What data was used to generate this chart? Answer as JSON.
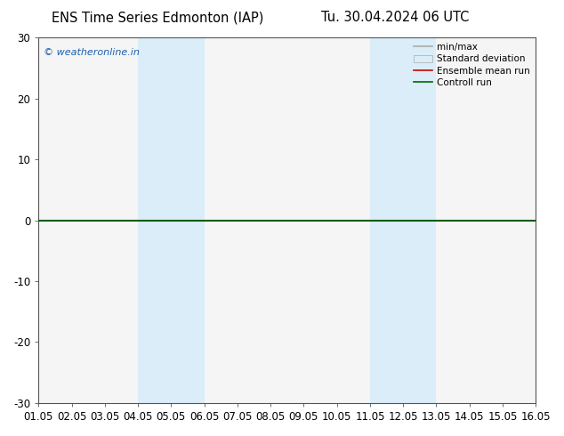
{
  "title_left": "ENS Time Series Edmonton (IAP)",
  "title_right": "Tu. 30.04.2024 06 UTC",
  "ylim": [
    -30,
    30
  ],
  "yticks": [
    -30,
    -20,
    -10,
    0,
    10,
    20,
    30
  ],
  "xtick_labels": [
    "01.05",
    "02.05",
    "03.05",
    "04.05",
    "05.05",
    "06.05",
    "07.05",
    "08.05",
    "09.05",
    "10.05",
    "11.05",
    "12.05",
    "13.05",
    "14.05",
    "15.05",
    "16.05"
  ],
  "shaded_bands": [
    {
      "xstart": 3,
      "xend": 4,
      "color": "#daedf8"
    },
    {
      "xstart": 4,
      "xend": 5,
      "color": "#daedf8"
    },
    {
      "xstart": 10,
      "xend": 11,
      "color": "#daedf8"
    },
    {
      "xstart": 11,
      "xend": 12,
      "color": "#daedf8"
    }
  ],
  "watermark": "© weatheronline.in",
  "watermark_color": "#1a5fb0",
  "legend_items": [
    {
      "label": "min/max",
      "type": "line",
      "color": "#aaaaaa",
      "lw": 1.2,
      "ls": "-"
    },
    {
      "label": "Standard deviation",
      "type": "patch",
      "facecolor": "#daedf8",
      "edgecolor": "#aaaaaa"
    },
    {
      "label": "Ensemble mean run",
      "type": "line",
      "color": "#cc0000",
      "lw": 1.2,
      "ls": "-"
    },
    {
      "label": "Controll run",
      "type": "line",
      "color": "#006600",
      "lw": 1.2,
      "ls": "-"
    }
  ],
  "background_color": "#ffffff",
  "plot_bg_color": "#f5f5f5",
  "zero_line_color": "#333333",
  "zero_line_lw": 1.5,
  "control_run_color": "#006600",
  "control_run_lw": 1.2,
  "title_fontsize": 10.5,
  "tick_fontsize": 8.5,
  "legend_fontsize": 7.5
}
